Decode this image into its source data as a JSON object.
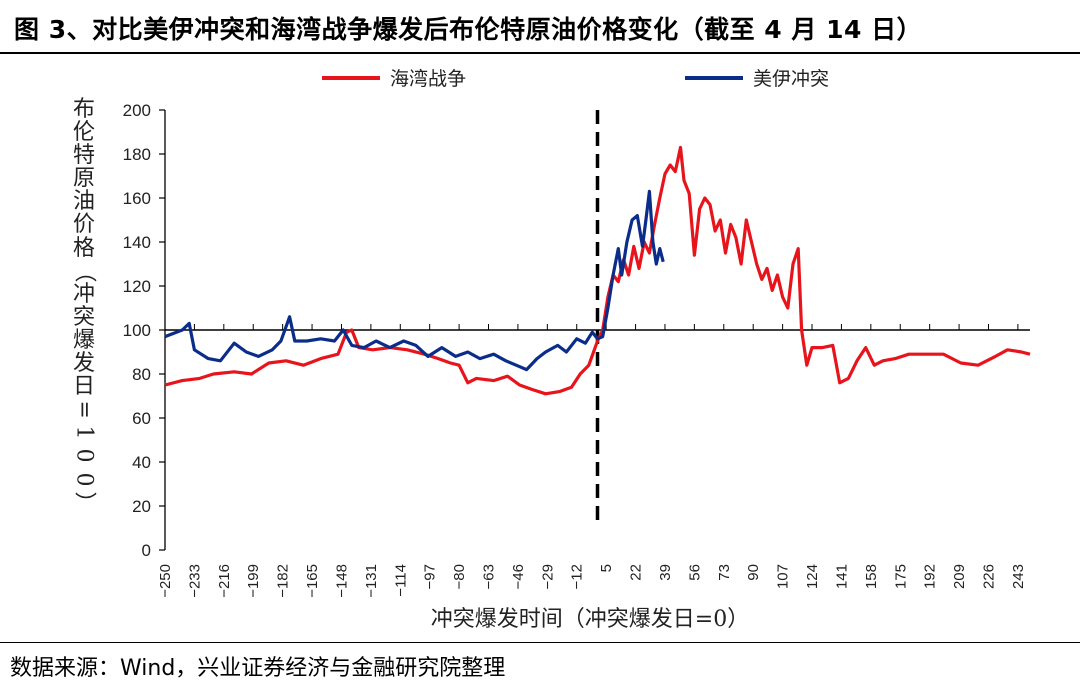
{
  "page": {
    "title": "图 3、对比美伊冲突和海湾战争爆发后布伦特原油价格变化（截至 4 月 14 日）",
    "source": "数据来源：Wind，兴业证券经济与金融研究院整理"
  },
  "chart_data": {
    "type": "line",
    "title": "对比美伊冲突和海湾战争爆发后布伦特原油价格变化（截至 4 月 14 日）",
    "xlabel": "冲突爆发时间（冲突爆发日=0）",
    "ylabel": "布伦特原油价格（冲突爆发日=100）",
    "xlim": [
      -250,
      250
    ],
    "ylim": [
      0,
      200
    ],
    "yticks": [
      0,
      20,
      40,
      60,
      80,
      100,
      120,
      140,
      160,
      180,
      200
    ],
    "xticks": [
      -250,
      -233,
      -216,
      -199,
      -182,
      -165,
      -148,
      -131,
      -114,
      -97,
      -80,
      -63,
      -46,
      -29,
      -12,
      5,
      22,
      39,
      56,
      73,
      90,
      107,
      124,
      141,
      158,
      175,
      192,
      209,
      226,
      243
    ],
    "reference_hline": 100,
    "event_vline_x": 0,
    "legend": {
      "placement": "top-center"
    },
    "series": [
      {
        "name": "海湾战争",
        "color": "#e8141c",
        "points": [
          [
            -250,
            75
          ],
          [
            -240,
            77
          ],
          [
            -230,
            78
          ],
          [
            -222,
            80
          ],
          [
            -210,
            81
          ],
          [
            -200,
            80
          ],
          [
            -190,
            85
          ],
          [
            -180,
            86
          ],
          [
            -170,
            84
          ],
          [
            -160,
            87
          ],
          [
            -150,
            89
          ],
          [
            -145,
            99
          ],
          [
            -142,
            100
          ],
          [
            -138,
            92
          ],
          [
            -130,
            91
          ],
          [
            -120,
            92
          ],
          [
            -110,
            91
          ],
          [
            -100,
            89
          ],
          [
            -92,
            87
          ],
          [
            -85,
            85
          ],
          [
            -80,
            84
          ],
          [
            -75,
            76
          ],
          [
            -70,
            78
          ],
          [
            -60,
            77
          ],
          [
            -52,
            79
          ],
          [
            -45,
            75
          ],
          [
            -38,
            73
          ],
          [
            -30,
            71
          ],
          [
            -22,
            72
          ],
          [
            -15,
            74
          ],
          [
            -10,
            80
          ],
          [
            -5,
            84
          ],
          [
            0,
            95
          ],
          [
            3,
            100
          ],
          [
            6,
            115
          ],
          [
            9,
            125
          ],
          [
            12,
            122
          ],
          [
            15,
            132
          ],
          [
            18,
            125
          ],
          [
            21,
            138
          ],
          [
            24,
            128
          ],
          [
            27,
            140
          ],
          [
            30,
            135
          ],
          [
            33,
            148
          ],
          [
            36,
            160
          ],
          [
            39,
            171
          ],
          [
            42,
            175
          ],
          [
            45,
            172
          ],
          [
            48,
            183
          ],
          [
            50,
            168
          ],
          [
            53,
            162
          ],
          [
            56,
            134
          ],
          [
            59,
            155
          ],
          [
            62,
            160
          ],
          [
            65,
            157
          ],
          [
            68,
            145
          ],
          [
            71,
            150
          ],
          [
            74,
            135
          ],
          [
            77,
            148
          ],
          [
            80,
            142
          ],
          [
            83,
            130
          ],
          [
            86,
            150
          ],
          [
            89,
            140
          ],
          [
            92,
            130
          ],
          [
            95,
            123
          ],
          [
            98,
            128
          ],
          [
            101,
            118
          ],
          [
            104,
            125
          ],
          [
            107,
            115
          ],
          [
            110,
            110
          ],
          [
            113,
            130
          ],
          [
            116,
            137
          ],
          [
            118,
            100
          ],
          [
            121,
            84
          ],
          [
            124,
            92
          ],
          [
            130,
            92
          ],
          [
            136,
            93
          ],
          [
            140,
            76
          ],
          [
            145,
            78
          ],
          [
            150,
            86
          ],
          [
            155,
            92
          ],
          [
            160,
            84
          ],
          [
            165,
            86
          ],
          [
            172,
            87
          ],
          [
            180,
            89
          ],
          [
            190,
            89
          ],
          [
            200,
            89
          ],
          [
            210,
            85
          ],
          [
            220,
            84
          ],
          [
            230,
            88
          ],
          [
            237,
            91
          ],
          [
            245,
            90
          ],
          [
            250,
            89
          ]
        ]
      },
      {
        "name": "美伊冲突",
        "color": "#0b2d8a",
        "points": [
          [
            -250,
            97
          ],
          [
            -240,
            100
          ],
          [
            -236,
            103
          ],
          [
            -233,
            91
          ],
          [
            -225,
            87
          ],
          [
            -218,
            86
          ],
          [
            -210,
            94
          ],
          [
            -203,
            90
          ],
          [
            -196,
            88
          ],
          [
            -188,
            91
          ],
          [
            -183,
            95
          ],
          [
            -178,
            106
          ],
          [
            -175,
            95
          ],
          [
            -168,
            95
          ],
          [
            -160,
            96
          ],
          [
            -152,
            95
          ],
          [
            -147,
            100
          ],
          [
            -142,
            93
          ],
          [
            -135,
            92
          ],
          [
            -128,
            95
          ],
          [
            -120,
            92
          ],
          [
            -112,
            95
          ],
          [
            -105,
            93
          ],
          [
            -98,
            88
          ],
          [
            -90,
            92
          ],
          [
            -82,
            88
          ],
          [
            -75,
            90
          ],
          [
            -68,
            87
          ],
          [
            -60,
            89
          ],
          [
            -53,
            86
          ],
          [
            -47,
            84
          ],
          [
            -41,
            82
          ],
          [
            -35,
            87
          ],
          [
            -30,
            90
          ],
          [
            -23,
            93
          ],
          [
            -18,
            90
          ],
          [
            -12,
            96
          ],
          [
            -7,
            94
          ],
          [
            -3,
            99
          ],
          [
            0,
            96
          ],
          [
            3,
            97
          ],
          [
            6,
            110
          ],
          [
            9,
            125
          ],
          [
            12,
            137
          ],
          [
            14,
            125
          ],
          [
            17,
            140
          ],
          [
            20,
            150
          ],
          [
            23,
            152
          ],
          [
            26,
            138
          ],
          [
            28,
            150
          ],
          [
            30,
            163
          ],
          [
            32,
            140
          ],
          [
            34,
            130
          ],
          [
            36,
            137
          ],
          [
            38,
            131
          ]
        ]
      }
    ]
  }
}
